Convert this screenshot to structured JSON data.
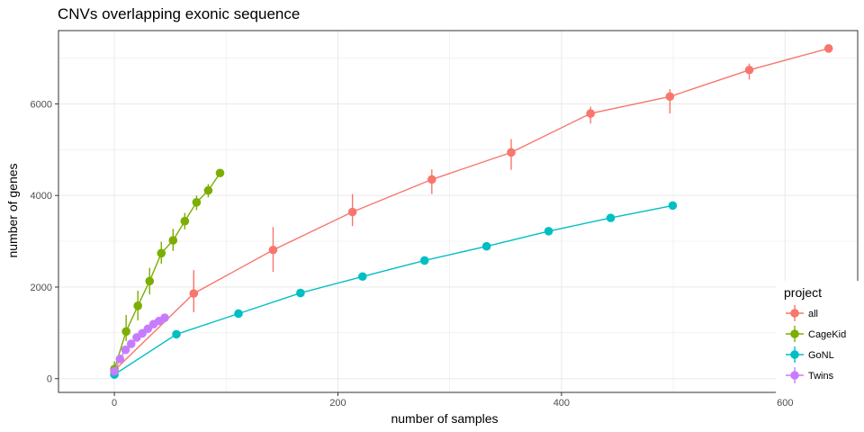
{
  "chart_data": {
    "type": "line",
    "title": "CNVs overlapping exonic sequence",
    "xlabel": "number of samples",
    "ylabel": "number of genes",
    "xlim": [
      -50,
      665
    ],
    "ylim": [
      -300,
      7600
    ],
    "x_ticks": [
      0,
      200,
      400,
      600
    ],
    "y_ticks": [
      0,
      2000,
      4000,
      6000
    ],
    "grid": true,
    "legend_position": "right-bottom",
    "legend_title": "project",
    "series": [
      {
        "name": "all",
        "color": "#F8766D",
        "x": [
          0,
          71,
          142,
          213,
          284,
          355,
          426,
          497,
          568,
          639
        ],
        "y": [
          180,
          1860,
          2810,
          3640,
          4350,
          4940,
          5790,
          6160,
          6740,
          7210
        ],
        "err_low": [
          60,
          1450,
          2330,
          3330,
          4030,
          4560,
          5570,
          5790,
          6530,
          7210
        ],
        "err_high": [
          300,
          2370,
          3310,
          4030,
          4570,
          5230,
          5940,
          6320,
          6880,
          7210
        ]
      },
      {
        "name": "CageKid",
        "color": "#7CAE00",
        "x": [
          0,
          10.5,
          21,
          31.5,
          42,
          52.5,
          63,
          73.5,
          84,
          94.5
        ],
        "y": [
          210,
          1030,
          1590,
          2130,
          2740,
          3020,
          3440,
          3850,
          4110,
          4490
        ],
        "err_low": [
          40,
          820,
          1270,
          1840,
          2510,
          2790,
          3260,
          3680,
          3960,
          4490
        ],
        "err_high": [
          380,
          1390,
          1920,
          2420,
          2990,
          3270,
          3620,
          4000,
          4250,
          4490
        ]
      },
      {
        "name": "GoNL",
        "color": "#00BFC4",
        "x": [
          0,
          55.5,
          111,
          166.5,
          222,
          277.5,
          333,
          388.5,
          444,
          499.5
        ],
        "y": [
          90,
          970,
          1420,
          1870,
          2230,
          2580,
          2890,
          3220,
          3510,
          3780
        ],
        "err_low": [
          60,
          930,
          1390,
          1840,
          2210,
          2560,
          2870,
          3200,
          3490,
          3780
        ],
        "err_high": [
          130,
          1010,
          1450,
          1900,
          2250,
          2600,
          2910,
          3240,
          3530,
          3780
        ]
      },
      {
        "name": "Twins",
        "color": "#C77CFF",
        "x": [
          0,
          5,
          10,
          15,
          20,
          25,
          30,
          35,
          40,
          45
        ],
        "y": [
          160,
          430,
          630,
          760,
          900,
          990,
          1090,
          1190,
          1260,
          1330
        ],
        "err_low": [
          110,
          380,
          590,
          720,
          870,
          960,
          1060,
          1160,
          1240,
          1330
        ],
        "err_high": [
          210,
          480,
          670,
          800,
          930,
          1020,
          1120,
          1220,
          1280,
          1330
        ]
      }
    ]
  }
}
